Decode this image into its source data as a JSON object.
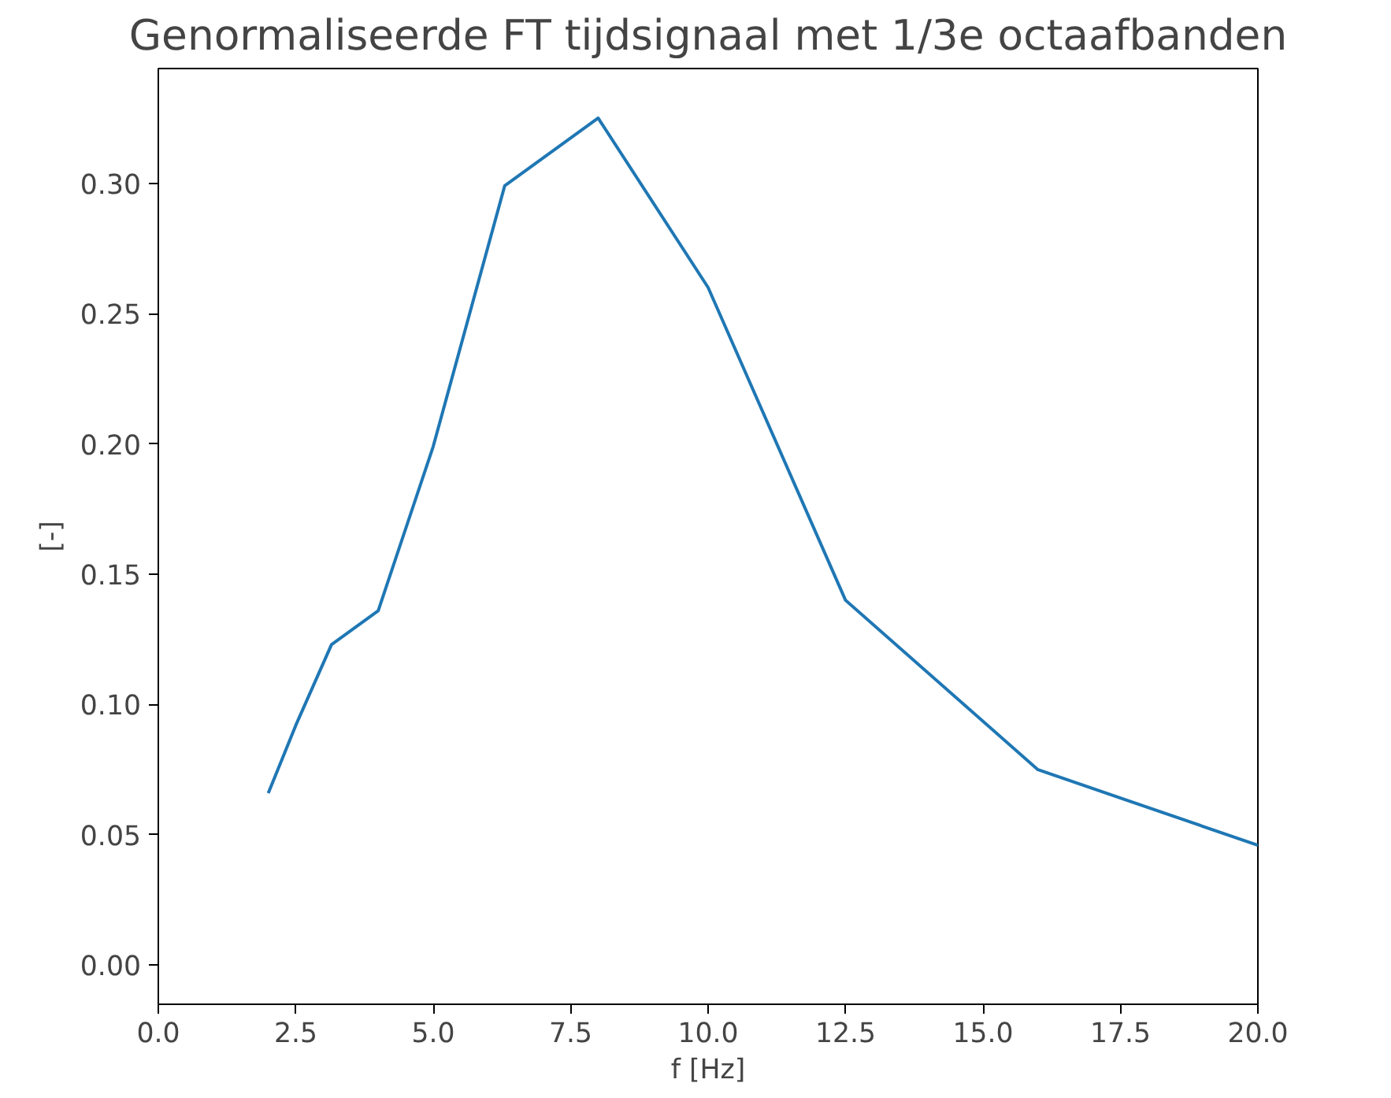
{
  "chart_data": {
    "type": "line",
    "title": "Genormaliseerde FT tijdsignaal met 1/3e octaafbanden",
    "xlabel": "f [Hz]",
    "ylabel": "[-]",
    "x": [
      2,
      2.5,
      3.15,
      4,
      5,
      6.3,
      8,
      10,
      12.5,
      16,
      20
    ],
    "series": [
      {
        "color": "#1f77b4",
        "values": [
          0.066,
          0.092,
          0.123,
          0.136,
          0.199,
          0.299,
          0.325,
          0.26,
          0.14,
          0.075,
          0.046
        ]
      }
    ],
    "xlim": [
      0,
      20
    ],
    "ylim": [
      -0.015,
      0.344
    ],
    "xticks": [
      {
        "value": 0,
        "label": "0.0"
      },
      {
        "value": 2.5,
        "label": "2.5"
      },
      {
        "value": 5,
        "label": "5.0"
      },
      {
        "value": 7.5,
        "label": "7.5"
      },
      {
        "value": 10,
        "label": "10.0"
      },
      {
        "value": 12.5,
        "label": "12.5"
      },
      {
        "value": 15,
        "label": "15.0"
      },
      {
        "value": 17.5,
        "label": "17.5"
      },
      {
        "value": 20,
        "label": "20.0"
      }
    ],
    "yticks": [
      {
        "value": 0,
        "label": "0.00"
      },
      {
        "value": 0.05,
        "label": "0.05"
      },
      {
        "value": 0.1,
        "label": "0.10"
      },
      {
        "value": 0.15,
        "label": "0.15"
      },
      {
        "value": 0.2,
        "label": "0.20"
      },
      {
        "value": 0.25,
        "label": "0.25"
      },
      {
        "value": 0.3,
        "label": "0.30"
      }
    ],
    "grid": false,
    "line_style": "solid"
  }
}
